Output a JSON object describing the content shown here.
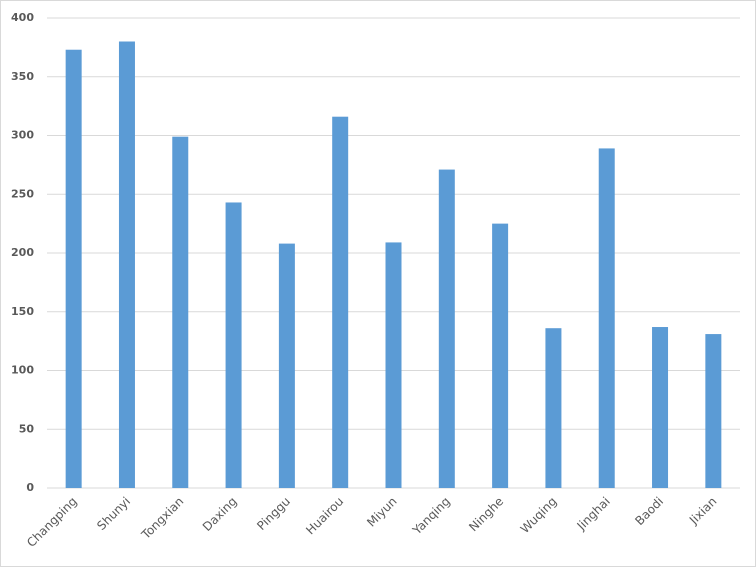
{
  "chart_data": {
    "type": "bar",
    "categories": [
      "Changping",
      "Shunyi",
      "Tongxian",
      "Daxing",
      "Pinggu",
      "Huairou",
      "Miyun",
      "Yanqing",
      "Ninghe",
      "Wuqing",
      "Jinghai",
      "Baodi",
      "Jixian"
    ],
    "values": [
      373,
      380,
      299,
      243,
      208,
      316,
      209,
      271,
      225,
      136,
      289,
      137,
      131
    ],
    "color": "#5b9bd5",
    "ylim": [
      0,
      400
    ],
    "yticks": [
      0,
      50,
      100,
      150,
      200,
      250,
      300,
      350,
      400
    ],
    "grid": true
  }
}
